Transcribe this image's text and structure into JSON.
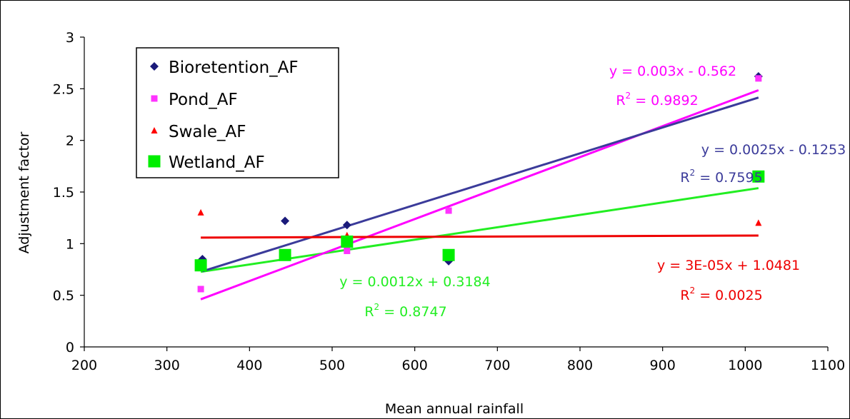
{
  "chart_data": {
    "type": "scatter",
    "xlabel": "Mean annual rainfall",
    "ylabel": "Adjustment factor",
    "xlim": [
      200,
      1100
    ],
    "ylim": [
      0,
      3
    ],
    "x_ticks": [
      200,
      300,
      400,
      500,
      600,
      700,
      800,
      900,
      1000,
      1100
    ],
    "y_ticks": [
      0,
      0.5,
      1,
      1.5,
      2,
      2.5,
      3
    ],
    "x_tick_labels": [
      "200",
      "300",
      "400",
      "500",
      "600",
      "700",
      "800",
      "900",
      "1000",
      "1100"
    ],
    "y_tick_labels": [
      "0",
      "0.5",
      "1",
      "1.5",
      "2",
      "2.5",
      "3"
    ],
    "grid": false,
    "legend_position": "top-left",
    "series": [
      {
        "name": "Bioretention_AF",
        "color": "#1a1a7a",
        "trend_color": "#3b3b9a",
        "marker": "diamond",
        "points": [
          [
            343,
            0.85
          ],
          [
            443,
            1.22
          ],
          [
            518,
            1.18
          ],
          [
            641,
            0.83
          ],
          [
            1016,
            2.62
          ]
        ],
        "trend": {
          "slope": 0.0025,
          "intercept": -0.1253,
          "x": [
            343,
            1016
          ]
        },
        "equation": "y = 0.0025x - 0.1253",
        "r2_prefix": "R",
        "r2_exp": "2",
        "r2_value": " = 0.7595"
      },
      {
        "name": "Pond_AF",
        "color": "#ff33ff",
        "trend_color": "#ff00ff",
        "marker": "square",
        "points": [
          [
            341,
            0.56
          ],
          [
            518,
            0.93
          ],
          [
            641,
            1.32
          ],
          [
            1016,
            2.6
          ]
        ],
        "trend": {
          "slope": 0.003,
          "intercept": -0.562,
          "x": [
            341,
            1016
          ]
        },
        "equation": "y = 0.003x - 0.562",
        "r2_prefix": "R",
        "r2_exp": "2",
        "r2_value": " = 0.9892"
      },
      {
        "name": "Swale_AF",
        "color": "#ff0000",
        "trend_color": "#ee0000",
        "marker": "triangle",
        "points": [
          [
            341,
            1.3
          ],
          [
            518,
            1.08
          ],
          [
            1016,
            1.2
          ]
        ],
        "trend": {
          "slope": 3e-05,
          "intercept": 1.0481,
          "x": [
            341,
            1016
          ]
        },
        "equation": "y = 3E-05x + 1.0481",
        "r2_prefix": "R",
        "r2_exp": "2",
        "r2_value": " = 0.0025"
      },
      {
        "name": "Wetland_AF",
        "color": "#00ee00",
        "trend_color": "#22ee22",
        "marker": "bigsquare",
        "points": [
          [
            341,
            0.79
          ],
          [
            443,
            0.89
          ],
          [
            518,
            1.02
          ],
          [
            641,
            0.89
          ],
          [
            1016,
            1.65
          ]
        ],
        "trend": {
          "slope": 0.0012,
          "intercept": 0.3184,
          "x": [
            341,
            1016
          ]
        },
        "equation": "y = 0.0012x + 0.3184",
        "r2_prefix": "R",
        "r2_exp": "2",
        "r2_value": " = 0.8747"
      }
    ]
  }
}
